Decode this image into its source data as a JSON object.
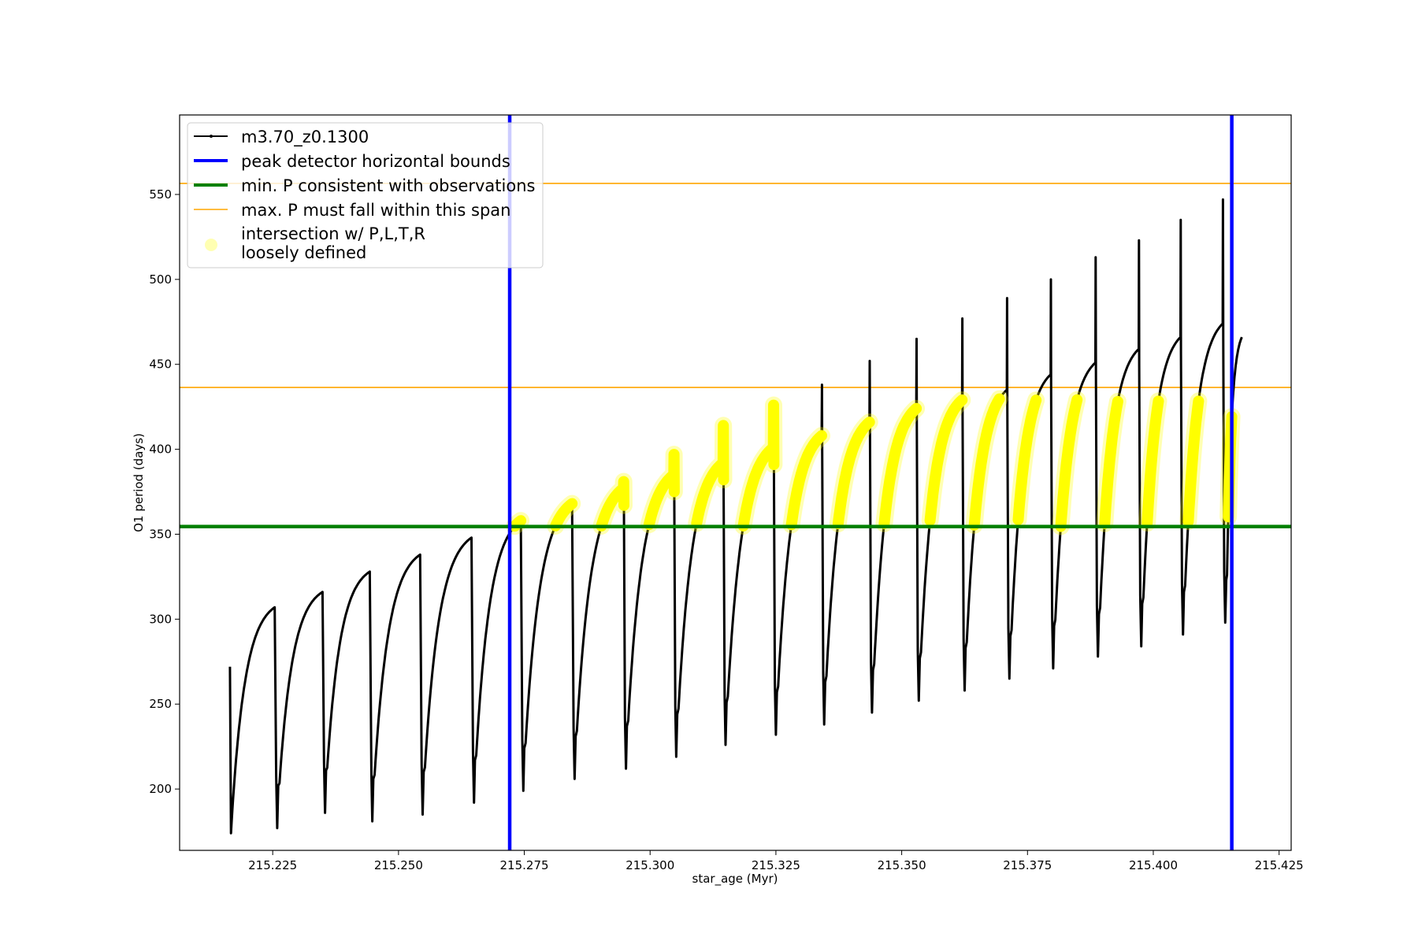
{
  "chart_data": {
    "type": "line",
    "title": "",
    "xlabel": "star_age (Myr)",
    "ylabel": "O1 period (days)",
    "xlim": [
      215.2065,
      215.4274
    ],
    "ylim": [
      163.9,
      596.8
    ],
    "xticks": [
      "215.225",
      "215.250",
      "215.275",
      "215.300",
      "215.325",
      "215.350",
      "215.375",
      "215.400",
      "215.425"
    ],
    "xtick_values": [
      215.225,
      215.25,
      215.275,
      215.3,
      215.325,
      215.35,
      215.375,
      215.4,
      215.425
    ],
    "yticks": [
      "200",
      "250",
      "300",
      "350",
      "400",
      "450",
      "500",
      "550"
    ],
    "ytick_values": [
      200,
      250,
      300,
      350,
      400,
      450,
      500,
      550
    ],
    "grid": false,
    "legend_placement": "upper-left",
    "legend": [
      {
        "label": "m3.70_z0.1300",
        "style": "black line with dot markers"
      },
      {
        "label": "peak detector horizontal bounds",
        "style": "blue thick line"
      },
      {
        "label": "min. P consistent with observations",
        "style": "green thick line"
      },
      {
        "label": "max. P must fall within this span",
        "style": "orange thin line"
      },
      {
        "label": "intersection w/ P,L,T,R\nloosely defined",
        "label_lines": [
          "intersection w/ P,L,T,R",
          "loosely defined"
        ],
        "style": "yellow circle markers"
      }
    ],
    "series": {
      "name": "m3.70_z0.1300",
      "color": "#000000",
      "start": {
        "age": 215.2165,
        "period": 272
      },
      "first_min": 174,
      "drop_ages": [
        215.2254,
        215.2349,
        215.2443,
        215.2543,
        215.2645,
        215.2743,
        215.2845,
        215.2947,
        215.3047,
        215.3145,
        215.3245,
        215.3341,
        215.3436,
        215.3529,
        215.362,
        215.3709,
        215.3796,
        215.3885,
        215.3971,
        215.4054,
        215.4138
      ],
      "peaks_before_drop": [
        307,
        316,
        328,
        338,
        348,
        358,
        368,
        377,
        385,
        392,
        401,
        408,
        416,
        424,
        429,
        435,
        444,
        451,
        459,
        466,
        474
      ],
      "mins_after_drop": [
        177,
        186,
        181,
        185,
        192,
        199,
        206,
        212,
        219,
        226,
        232,
        238,
        245,
        252,
        258,
        265,
        271,
        278,
        284,
        291,
        298
      ],
      "spikes_at_drop": [
        null,
        null,
        null,
        null,
        null,
        null,
        null,
        381,
        397,
        414,
        426,
        438,
        452,
        465,
        477,
        489,
        500,
        513,
        523,
        535,
        547
      ],
      "end": {
        "age": 215.4176,
        "period": 466
      }
    },
    "vertical_lines": {
      "label": "peak detector horizontal bounds",
      "color": "#0000ff",
      "x": [
        215.2721,
        215.4156
      ]
    },
    "min_period_line": {
      "label": "min. P consistent with observations",
      "color": "#008000",
      "y": 354.5
    },
    "max_period_span": {
      "label": "max. P must fall within this span",
      "color": "#ffa500",
      "y": [
        436.4,
        556.5
      ]
    },
    "intersection": {
      "label": "intersection w/ P,L,T,R loosely defined",
      "color": "#ffff00",
      "period_range": [
        354.5,
        430
      ],
      "age_range": [
        215.2721,
        215.4156
      ]
    }
  }
}
